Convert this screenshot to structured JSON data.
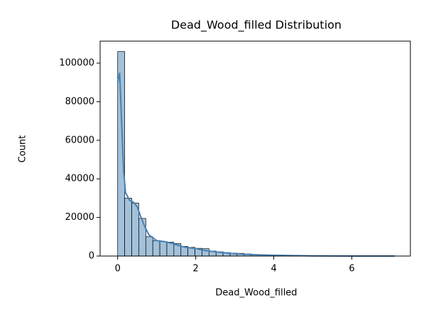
{
  "chart_data": {
    "type": "histogram",
    "title": "Dead_Wood_filled Distribution",
    "x_label": "Dead_Wood_filled",
    "y_label": "Count",
    "bins": [
      0,
      0.18,
      0.36,
      0.54,
      0.72,
      0.9,
      1.08,
      1.26,
      1.44,
      1.62,
      1.8,
      1.98,
      2.16,
      2.34,
      2.52,
      2.7,
      2.88,
      3.06,
      3.24,
      3.42,
      3.6,
      3.78,
      3.96,
      4.14,
      4.32,
      4.5,
      4.68,
      4.86,
      5.04,
      5.22,
      5.4,
      5.58,
      5.76,
      5.94,
      6.12,
      6.3,
      6.48,
      6.66,
      6.84,
      7.02,
      7.2
    ],
    "values": [
      106000,
      30000,
      27500,
      19500,
      10000,
      8000,
      7500,
      7200,
      6500,
      5000,
      4500,
      4000,
      3800,
      2600,
      2200,
      1800,
      1500,
      1400,
      1100,
      800,
      600,
      500,
      400,
      300,
      200,
      150,
      100,
      80,
      60,
      40,
      30,
      20,
      15,
      10,
      8,
      5,
      3,
      2,
      1,
      1
    ],
    "color": "#a3c1da",
    "edge_color": "#000000",
    "kde": {
      "color": "#4682b4",
      "x": [
        0,
        0.05,
        0.1,
        0.15,
        0.2,
        0.3,
        0.4,
        0.5,
        0.6,
        0.7,
        0.8,
        1,
        1.2,
        1.4,
        1.6,
        1.8,
        2,
        2.2,
        2.5,
        3,
        3.5,
        4,
        5,
        6,
        7.1
      ],
      "values": [
        90000,
        95000,
        70000,
        45000,
        33000,
        29000,
        28000,
        25500,
        20000,
        15000,
        11000,
        8000,
        7500,
        6500,
        5200,
        4300,
        3900,
        3000,
        2200,
        1200,
        700,
        400,
        100,
        20,
        5
      ]
    },
    "xlim": [
      -0.45,
      7.5
    ],
    "ylim": [
      0,
      111400
    ],
    "xticks": [
      0,
      2,
      4,
      6
    ],
    "yticks": [
      0,
      20000,
      40000,
      60000,
      80000,
      100000
    ]
  }
}
